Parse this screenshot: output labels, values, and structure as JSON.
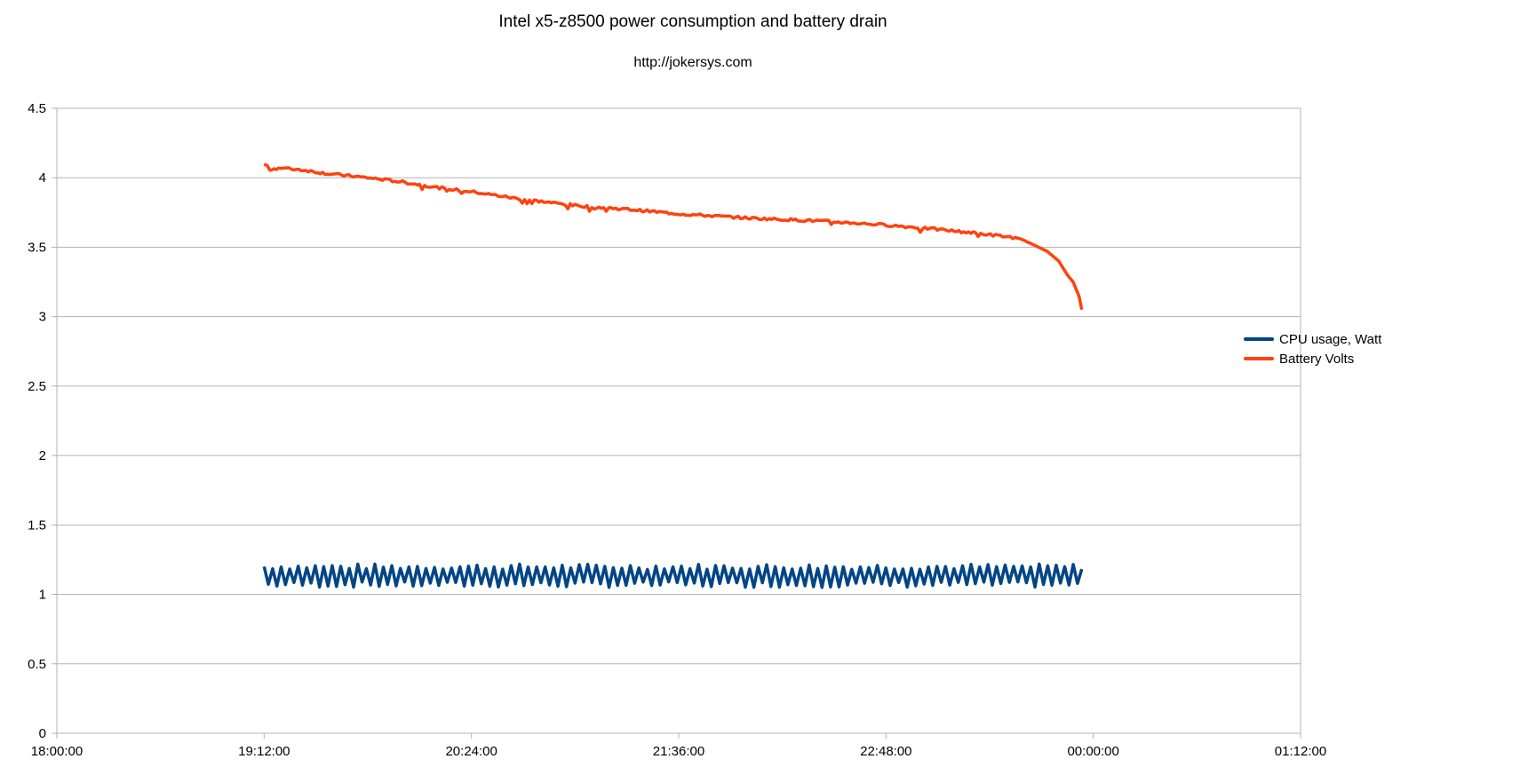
{
  "chart_data": {
    "type": "line",
    "title": "Intel x5-z8500 power consumption and battery drain",
    "subtitle": "http://jokersys.com",
    "xlabel": "",
    "ylabel": "",
    "x_ticks": [
      "18:00:00",
      "19:12:00",
      "20:24:00",
      "21:36:00",
      "22:48:00",
      "00:00:00",
      "01:12:00"
    ],
    "xlim": [
      "18:00:00",
      "01:12:00"
    ],
    "ylim": [
      0,
      4.5
    ],
    "y_ticks": [
      "0",
      "0.5",
      "1",
      "1.5",
      "2",
      "2.5",
      "3",
      "3.5",
      "4",
      "4.5"
    ],
    "grid": true,
    "legend_position": "right",
    "series": [
      {
        "name": "CPU usage, Watt",
        "color": "#004586",
        "x_start": "19:12:00",
        "x_end": "23:56:00",
        "low": 1.07,
        "high": 1.2,
        "oscillations": 96
      },
      {
        "name": "Battery Volts",
        "color": "#ff420e",
        "points": [
          {
            "x": "19:12:00",
            "y": 4.1
          },
          {
            "x": "19:14:00",
            "y": 4.06
          },
          {
            "x": "19:17:00",
            "y": 4.07
          },
          {
            "x": "19:24:00",
            "y": 4.06
          },
          {
            "x": "19:34:00",
            "y": 4.03
          },
          {
            "x": "19:48:00",
            "y": 4.0
          },
          {
            "x": "20:00:00",
            "y": 3.97
          },
          {
            "x": "20:12:00",
            "y": 3.93
          },
          {
            "x": "20:24:00",
            "y": 3.9
          },
          {
            "x": "20:40:00",
            "y": 3.85
          },
          {
            "x": "21:00:00",
            "y": 3.8
          },
          {
            "x": "21:20:00",
            "y": 3.77
          },
          {
            "x": "21:36:00",
            "y": 3.74
          },
          {
            "x": "22:00:00",
            "y": 3.71
          },
          {
            "x": "22:24:00",
            "y": 3.69
          },
          {
            "x": "22:48:00",
            "y": 3.66
          },
          {
            "x": "23:05:00",
            "y": 3.63
          },
          {
            "x": "23:20:00",
            "y": 3.6
          },
          {
            "x": "23:32:00",
            "y": 3.57
          },
          {
            "x": "23:38:00",
            "y": 3.53
          },
          {
            "x": "23:44:00",
            "y": 3.47
          },
          {
            "x": "23:48:00",
            "y": 3.4
          },
          {
            "x": "23:51:00",
            "y": 3.3
          },
          {
            "x": "23:53:00",
            "y": 3.25
          },
          {
            "x": "23:55:00",
            "y": 3.15
          },
          {
            "x": "23:56:00",
            "y": 3.05
          }
        ]
      }
    ]
  }
}
